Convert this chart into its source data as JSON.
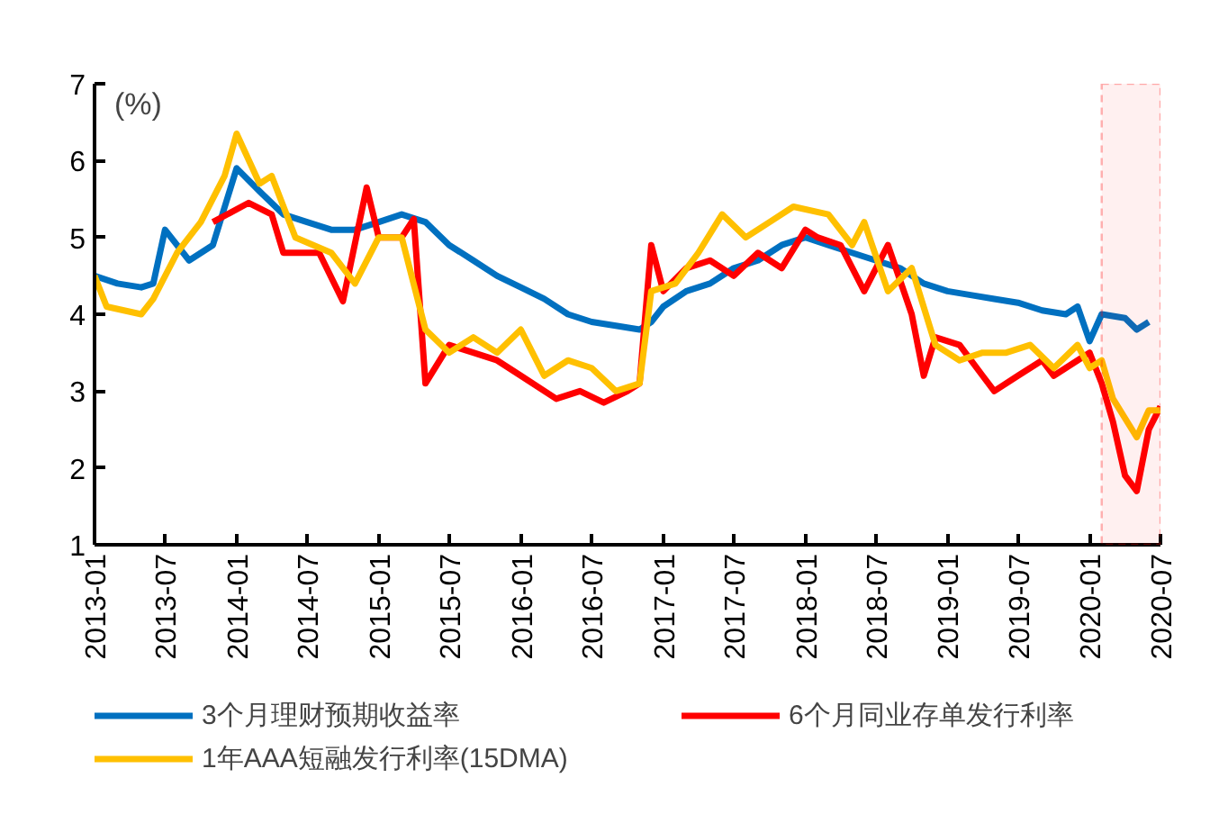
{
  "chart_data": {
    "type": "line",
    "annotations": [
      "(%)"
    ],
    "xlim": [
      "2013-01",
      "2020-07"
    ],
    "xticks": [
      "2013-01",
      "2013-07",
      "2014-01",
      "2014-07",
      "2015-01",
      "2015-07",
      "2016-01",
      "2016-07",
      "2017-01",
      "2017-07",
      "2018-01",
      "2018-07",
      "2019-01",
      "2019-07",
      "2020-01",
      "2020-07"
    ],
    "ylim": [
      1,
      7
    ],
    "yticks": [
      1,
      2,
      3,
      4,
      5,
      6,
      7
    ],
    "grid": false,
    "legend": "bottom",
    "line_style": "solid",
    "marker": "none",
    "bands": [
      {
        "axis": "x",
        "from": "2020-02",
        "to": "2020-07",
        "color": "#ff0000"
      }
    ],
    "series": [
      {
        "name": "3个月理财预期收益率",
        "color": "#0070c0",
        "x": [
          "2013-01",
          "2013-03",
          "2013-05",
          "2013-06",
          "2013-07",
          "2013-09",
          "2013-11",
          "2014-01",
          "2014-03",
          "2014-05",
          "2014-07",
          "2014-09",
          "2014-11",
          "2015-01",
          "2015-03",
          "2015-05",
          "2015-07",
          "2015-09",
          "2015-11",
          "2016-01",
          "2016-03",
          "2016-05",
          "2016-07",
          "2016-09",
          "2016-11",
          "2016-12",
          "2017-01",
          "2017-03",
          "2017-05",
          "2017-07",
          "2017-09",
          "2017-11",
          "2018-01",
          "2018-03",
          "2018-05",
          "2018-07",
          "2018-09",
          "2018-11",
          "2019-01",
          "2019-03",
          "2019-05",
          "2019-07",
          "2019-09",
          "2019-11",
          "2019-12",
          "2020-01",
          "2020-02",
          "2020-04",
          "2020-05",
          "2020-06"
        ],
        "values": [
          4.5,
          4.4,
          4.35,
          4.4,
          5.1,
          4.7,
          4.9,
          5.9,
          5.6,
          5.3,
          5.2,
          5.1,
          5.1,
          5.2,
          5.3,
          5.2,
          4.9,
          4.7,
          4.5,
          4.35,
          4.2,
          4.0,
          3.9,
          3.85,
          3.8,
          3.9,
          4.1,
          4.3,
          4.4,
          4.6,
          4.7,
          4.9,
          5.0,
          4.9,
          4.8,
          4.7,
          4.6,
          4.4,
          4.3,
          4.25,
          4.2,
          4.15,
          4.05,
          4.0,
          4.1,
          3.65,
          4.0,
          3.95,
          3.8,
          3.9
        ]
      },
      {
        "name": "6个月同业存单发行利率",
        "color": "#ff0000",
        "x": [
          "2013-11",
          "2014-02",
          "2014-04",
          "2014-05",
          "2014-08",
          "2014-10",
          "2014-12",
          "2015-01",
          "2015-03",
          "2015-04",
          "2015-05",
          "2015-07",
          "2015-09",
          "2015-11",
          "2016-01",
          "2016-04",
          "2016-06",
          "2016-08",
          "2016-10",
          "2016-11",
          "2016-12",
          "2017-01",
          "2017-03",
          "2017-05",
          "2017-07",
          "2017-09",
          "2017-11",
          "2018-01",
          "2018-02",
          "2018-04",
          "2018-06",
          "2018-08",
          "2018-10",
          "2018-11",
          "2018-12",
          "2019-02",
          "2019-04",
          "2019-05",
          "2019-07",
          "2019-09",
          "2019-10",
          "2019-12",
          "2020-01",
          "2020-02",
          "2020-03",
          "2020-04",
          "2020-05",
          "2020-06",
          "2020-07"
        ],
        "values": [
          5.2,
          5.45,
          5.3,
          4.8,
          4.8,
          4.17,
          5.65,
          5.0,
          5.0,
          5.24,
          3.1,
          3.6,
          3.5,
          3.4,
          3.2,
          2.9,
          3.0,
          2.85,
          3.0,
          3.1,
          4.9,
          4.3,
          4.6,
          4.7,
          4.5,
          4.8,
          4.6,
          5.1,
          5.0,
          4.9,
          4.3,
          4.9,
          4.0,
          3.2,
          3.7,
          3.6,
          3.2,
          3.0,
          3.2,
          3.4,
          3.2,
          3.4,
          3.5,
          3.1,
          2.6,
          1.9,
          1.7,
          2.5,
          2.8
        ]
      },
      {
        "name": "1年AAA短融发行利率(15DMA)",
        "color": "#ffc000",
        "x": [
          "2013-01",
          "2013-02",
          "2013-05",
          "2013-06",
          "2013-08",
          "2013-10",
          "2013-12",
          "2014-01",
          "2014-03",
          "2014-04",
          "2014-06",
          "2014-09",
          "2014-11",
          "2015-01",
          "2015-03",
          "2015-05",
          "2015-07",
          "2015-09",
          "2015-11",
          "2016-01",
          "2016-03",
          "2016-05",
          "2016-07",
          "2016-09",
          "2016-11",
          "2016-12",
          "2017-02",
          "2017-04",
          "2017-06",
          "2017-08",
          "2017-10",
          "2017-12",
          "2018-03",
          "2018-05",
          "2018-06",
          "2018-08",
          "2018-10",
          "2018-12",
          "2019-02",
          "2019-04",
          "2019-06",
          "2019-08",
          "2019-10",
          "2019-12",
          "2020-01",
          "2020-02",
          "2020-03",
          "2020-05",
          "2020-06",
          "2020-07"
        ],
        "values": [
          4.5,
          4.1,
          4.0,
          4.2,
          4.8,
          5.2,
          5.8,
          6.35,
          5.7,
          5.8,
          5.0,
          4.8,
          4.4,
          5.0,
          5.0,
          3.8,
          3.5,
          3.7,
          3.5,
          3.8,
          3.2,
          3.4,
          3.3,
          3.0,
          3.1,
          4.3,
          4.4,
          4.8,
          5.3,
          5.0,
          5.2,
          5.4,
          5.3,
          4.9,
          5.2,
          4.3,
          4.6,
          3.6,
          3.4,
          3.5,
          3.5,
          3.6,
          3.3,
          3.6,
          3.3,
          3.4,
          2.9,
          2.4,
          2.75,
          2.75
        ]
      }
    ]
  }
}
